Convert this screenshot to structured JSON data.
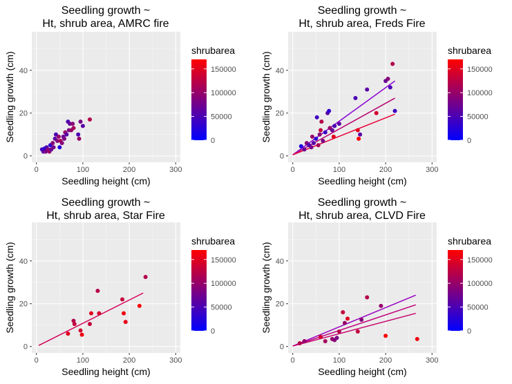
{
  "chart_data": [
    {
      "type": "scatter",
      "title_lines": [
        "Seedling growth ~",
        "Ht, shrub area, AMRC fire"
      ],
      "xlabel": "Seedling height (cm)",
      "ylabel": "Seedling growth (cm)",
      "xlim": [
        -10,
        310
      ],
      "ylim": [
        -3,
        58
      ],
      "xticks": [
        0,
        100,
        200,
        300
      ],
      "yticks": [
        0,
        20,
        40
      ],
      "grid": true,
      "legend": {
        "title": "shrubarea",
        "position": "right",
        "ticks": [
          0,
          50000,
          100000,
          150000
        ],
        "range": [
          0,
          170000
        ],
        "colors": [
          "#0000FF",
          "#FF0000"
        ]
      },
      "points": [
        {
          "x": 12,
          "y": 3,
          "shrub": 40000
        },
        {
          "x": 15,
          "y": 2,
          "shrub": 60000
        },
        {
          "x": 18,
          "y": 3.5,
          "shrub": 30000
        },
        {
          "x": 20,
          "y": 2,
          "shrub": 80000
        },
        {
          "x": 22,
          "y": 4,
          "shrub": 50000
        },
        {
          "x": 25,
          "y": 3,
          "shrub": 90000
        },
        {
          "x": 28,
          "y": 2,
          "shrub": 100000
        },
        {
          "x": 30,
          "y": 5,
          "shrub": 30000
        },
        {
          "x": 32,
          "y": 3,
          "shrub": 70000
        },
        {
          "x": 35,
          "y": 6,
          "shrub": 90000
        },
        {
          "x": 37,
          "y": 4,
          "shrub": 80000
        },
        {
          "x": 40,
          "y": 8,
          "shrub": 60000
        },
        {
          "x": 42,
          "y": 10,
          "shrub": 50000
        },
        {
          "x": 45,
          "y": 7,
          "shrub": 90000
        },
        {
          "x": 48,
          "y": 9,
          "shrub": 100000
        },
        {
          "x": 50,
          "y": 4,
          "shrub": 20000
        },
        {
          "x": 52,
          "y": 7,
          "shrub": 110000
        },
        {
          "x": 55,
          "y": 6,
          "shrub": 90000
        },
        {
          "x": 58,
          "y": 9,
          "shrub": 70000
        },
        {
          "x": 60,
          "y": 8,
          "shrub": 80000
        },
        {
          "x": 62,
          "y": 11,
          "shrub": 100000
        },
        {
          "x": 65,
          "y": 10,
          "shrub": 60000
        },
        {
          "x": 68,
          "y": 16,
          "shrub": 50000
        },
        {
          "x": 70,
          "y": 12,
          "shrub": 80000
        },
        {
          "x": 72,
          "y": 15,
          "shrub": 70000
        },
        {
          "x": 75,
          "y": 12,
          "shrub": 100000
        },
        {
          "x": 78,
          "y": 15,
          "shrub": 90000
        },
        {
          "x": 80,
          "y": 13,
          "shrub": 110000
        },
        {
          "x": 90,
          "y": 10,
          "shrub": 50000
        },
        {
          "x": 92,
          "y": 8,
          "shrub": 100000
        },
        {
          "x": 95,
          "y": 16,
          "shrub": 80000
        },
        {
          "x": 100,
          "y": 14,
          "shrub": 60000
        },
        {
          "x": 115,
          "y": 17,
          "shrub": 120000
        }
      ],
      "lines": []
    },
    {
      "type": "scatter",
      "title_lines": [
        "Seedling growth ~",
        "Ht, shrub area, Freds Fire"
      ],
      "xlabel": "Seedling height (cm)",
      "ylabel": "Seedling growth (cm)",
      "xlim": [
        -10,
        310
      ],
      "ylim": [
        -3,
        58
      ],
      "xticks": [
        0,
        100,
        200,
        300
      ],
      "yticks": [
        0,
        20,
        40
      ],
      "grid": true,
      "legend": {
        "title": "shrubarea",
        "position": "right",
        "ticks": [
          0,
          50000,
          100000,
          150000
        ],
        "range": [
          0,
          170000
        ],
        "colors": [
          "#0000FF",
          "#FF0000"
        ]
      },
      "points": [
        {
          "x": 18,
          "y": 4.5,
          "shrub": 20000
        },
        {
          "x": 25,
          "y": 3,
          "shrub": 70000
        },
        {
          "x": 30,
          "y": 6,
          "shrub": 90000
        },
        {
          "x": 35,
          "y": 5,
          "shrub": 50000
        },
        {
          "x": 40,
          "y": 4,
          "shrub": 80000
        },
        {
          "x": 42,
          "y": 9,
          "shrub": 100000
        },
        {
          "x": 45,
          "y": 6,
          "shrub": 60000
        },
        {
          "x": 50,
          "y": 8,
          "shrub": 30000
        },
        {
          "x": 52,
          "y": 18,
          "shrub": 40000
        },
        {
          "x": 55,
          "y": 5,
          "shrub": 110000
        },
        {
          "x": 58,
          "y": 10,
          "shrub": 90000
        },
        {
          "x": 60,
          "y": 12,
          "shrub": 130000
        },
        {
          "x": 62,
          "y": 16,
          "shrub": 120000
        },
        {
          "x": 65,
          "y": 7,
          "shrub": 80000
        },
        {
          "x": 70,
          "y": 11,
          "shrub": 40000
        },
        {
          "x": 75,
          "y": 20,
          "shrub": 60000
        },
        {
          "x": 78,
          "y": 21,
          "shrub": 30000
        },
        {
          "x": 80,
          "y": 13,
          "shrub": 100000
        },
        {
          "x": 85,
          "y": 12,
          "shrub": 70000
        },
        {
          "x": 88,
          "y": 9,
          "shrub": 150000
        },
        {
          "x": 90,
          "y": 14,
          "shrub": 50000
        },
        {
          "x": 100,
          "y": 15,
          "shrub": 60000
        },
        {
          "x": 135,
          "y": 27,
          "shrub": 50000
        },
        {
          "x": 140,
          "y": 12,
          "shrub": 150000
        },
        {
          "x": 142,
          "y": 8,
          "shrub": 170000
        },
        {
          "x": 145,
          "y": 10,
          "shrub": 60000
        },
        {
          "x": 160,
          "y": 31,
          "shrub": 60000
        },
        {
          "x": 180,
          "y": 20,
          "shrub": 140000
        },
        {
          "x": 200,
          "y": 35,
          "shrub": 70000
        },
        {
          "x": 205,
          "y": 36,
          "shrub": 90000
        },
        {
          "x": 210,
          "y": 32,
          "shrub": 50000
        },
        {
          "x": 215,
          "y": 43,
          "shrub": 120000
        },
        {
          "x": 220,
          "y": 21,
          "shrub": 40000
        }
      ],
      "lines": [
        {
          "x": [
            0,
            220
          ],
          "y": [
            0.5,
            35
          ],
          "color": "#8B00D2"
        },
        {
          "x": [
            0,
            220
          ],
          "y": [
            0.5,
            27
          ],
          "color": "#B8006E"
        },
        {
          "x": [
            0,
            220
          ],
          "y": [
            0.5,
            19.5
          ],
          "color": "#E8003A"
        }
      ]
    },
    {
      "type": "scatter",
      "title_lines": [
        "Seedling growth ~",
        "Ht, shrub area, Star Fire"
      ],
      "xlabel": "Seedling height (cm)",
      "ylabel": "Seedling growth (cm)",
      "xlim": [
        -10,
        310
      ],
      "ylim": [
        -3,
        58
      ],
      "xticks": [
        0,
        100,
        200,
        300
      ],
      "yticks": [
        0,
        20,
        40
      ],
      "grid": true,
      "legend": {
        "title": "shrubarea",
        "position": "right",
        "ticks": [
          0,
          50000,
          100000,
          150000
        ],
        "range": [
          0,
          170000
        ],
        "colors": [
          "#0000FF",
          "#FF0000"
        ]
      },
      "points": [
        {
          "x": 68,
          "y": 6,
          "shrub": 150000
        },
        {
          "x": 80,
          "y": 12,
          "shrub": 120000
        },
        {
          "x": 82,
          "y": 10.5,
          "shrub": 130000
        },
        {
          "x": 95,
          "y": 7.5,
          "shrub": 140000
        },
        {
          "x": 98,
          "y": 5.5,
          "shrub": 160000
        },
        {
          "x": 115,
          "y": 10.5,
          "shrub": 130000
        },
        {
          "x": 118,
          "y": 15.5,
          "shrub": 150000
        },
        {
          "x": 132,
          "y": 26,
          "shrub": 120000
        },
        {
          "x": 135,
          "y": 15.5,
          "shrub": 140000
        },
        {
          "x": 185,
          "y": 22,
          "shrub": 130000
        },
        {
          "x": 188,
          "y": 15.5,
          "shrub": 160000
        },
        {
          "x": 192,
          "y": 11.5,
          "shrub": 155000
        },
        {
          "x": 222,
          "y": 19,
          "shrub": 165000
        },
        {
          "x": 235,
          "y": 32.5,
          "shrub": 120000
        }
      ],
      "lines": [
        {
          "x": [
            5,
            230
          ],
          "y": [
            0.5,
            25
          ],
          "color": "#D4005A"
        }
      ]
    },
    {
      "type": "scatter",
      "title_lines": [
        "Seedling growth ~",
        "Ht, shrub area, CLVD Fire"
      ],
      "xlabel": "Seedling height (cm)",
      "ylabel": "Seedling growth (cm)",
      "xlim": [
        -10,
        310
      ],
      "ylim": [
        -3,
        58
      ],
      "xticks": [
        0,
        100,
        200,
        300
      ],
      "yticks": [
        0,
        20,
        40
      ],
      "grid": true,
      "legend": {
        "title": "shrubarea",
        "position": "right",
        "ticks": [
          0,
          50000,
          100000,
          150000
        ],
        "range": [
          0,
          170000
        ],
        "colors": [
          "#0000FF",
          "#FF0000"
        ]
      },
      "points": [
        {
          "x": 15,
          "y": 1.5,
          "shrub": 120000
        },
        {
          "x": 25,
          "y": 2.5,
          "shrub": 100000
        },
        {
          "x": 60,
          "y": 4.5,
          "shrub": 140000
        },
        {
          "x": 70,
          "y": 2.5,
          "shrub": 110000
        },
        {
          "x": 85,
          "y": 3.5,
          "shrub": 100000
        },
        {
          "x": 90,
          "y": 3,
          "shrub": 90000
        },
        {
          "x": 95,
          "y": 4,
          "shrub": 80000
        },
        {
          "x": 100,
          "y": 7,
          "shrub": 120000
        },
        {
          "x": 108,
          "y": 16,
          "shrub": 130000
        },
        {
          "x": 112,
          "y": 11,
          "shrub": 100000
        },
        {
          "x": 118,
          "y": 13,
          "shrub": 150000
        },
        {
          "x": 140,
          "y": 7,
          "shrub": 130000
        },
        {
          "x": 148,
          "y": 12.5,
          "shrub": 90000
        },
        {
          "x": 160,
          "y": 23,
          "shrub": 120000
        },
        {
          "x": 190,
          "y": 19,
          "shrub": 100000
        },
        {
          "x": 200,
          "y": 5,
          "shrub": 170000
        },
        {
          "x": 268,
          "y": 3.5,
          "shrub": 160000
        }
      ],
      "lines": [
        {
          "x": [
            0,
            265
          ],
          "y": [
            0.2,
            24
          ],
          "color": "#9A00C2"
        },
        {
          "x": [
            0,
            265
          ],
          "y": [
            0.2,
            19.5
          ],
          "color": "#C0007A"
        },
        {
          "x": [
            0,
            265
          ],
          "y": [
            0.2,
            15.5
          ],
          "color": "#C8006A"
        }
      ]
    }
  ]
}
